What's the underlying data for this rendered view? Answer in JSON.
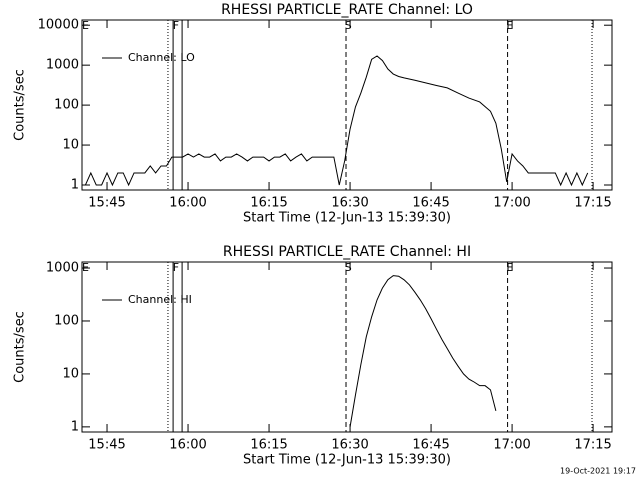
{
  "chart_data": [
    {
      "type": "line",
      "title": "RHESSI PARTICLE_RATE Channel: LO",
      "x_label": "Start Time (12-Jun-13 15:39:30)",
      "y_label": "Counts/sec",
      "log_y": true,
      "legend": "upper left",
      "xlim": [
        "15:40:22",
        "17:18:30"
      ],
      "xticks": [
        "15:45",
        "16:00",
        "16:15",
        "16:30",
        "16:45",
        "17:00",
        "17:15"
      ],
      "ylim": [
        0.75,
        13500
      ],
      "yticks": [
        1,
        10,
        100,
        1000,
        10000
      ],
      "x": [
        "15:41",
        "15:42",
        "15:43",
        "15:44",
        "15:45",
        "15:46",
        "15:47",
        "15:48",
        "15:49",
        "15:50",
        "15:51",
        "15:52",
        "15:53",
        "15:54",
        "15:55",
        "15:56",
        "15:57",
        "15:58",
        "15:59",
        "16:00",
        "16:01",
        "16:02",
        "16:03",
        "16:04",
        "16:05",
        "16:06",
        "16:07",
        "16:08",
        "16:09",
        "16:10",
        "16:11",
        "16:12",
        "16:13",
        "16:14",
        "16:15",
        "16:16",
        "16:17",
        "16:18",
        "16:19",
        "16:20",
        "16:21",
        "16:22",
        "16:23",
        "16:24",
        "16:25",
        "16:26",
        "16:27",
        "16:28",
        "16:29",
        "16:30",
        "16:31",
        "16:32",
        "16:33",
        "16:34",
        "16:35",
        "16:36",
        "16:37",
        "16:38",
        "16:39",
        "16:40",
        "16:42",
        "16:44",
        "16:46",
        "16:48",
        "16:50",
        "16:52",
        "16:54",
        "16:56",
        "16:57",
        "16:58",
        "16:59",
        "17:00",
        "17:01",
        "17:02",
        "17:03",
        "17:04",
        "17:05",
        "17:06",
        "17:07",
        "17:08",
        "17:09",
        "17:10",
        "17:11",
        "17:12",
        "17:13",
        "17:14"
      ],
      "series": [
        {
          "name": "Channel: LO",
          "color": "#000000",
          "values": [
            1,
            2,
            1,
            1,
            2,
            1,
            2,
            2,
            1,
            2,
            2,
            2,
            3,
            2,
            3,
            3,
            5,
            5,
            5,
            6,
            5,
            6,
            5,
            5,
            6,
            4,
            5,
            5,
            6,
            5,
            4,
            5,
            5,
            5,
            4,
            5,
            5,
            6,
            4,
            5,
            6,
            4,
            5,
            5,
            5,
            5,
            5,
            1,
            4,
            25,
            90,
            200,
            500,
            1400,
            1700,
            1300,
            800,
            600,
            520,
            480,
            420,
            360,
            310,
            270,
            200,
            150,
            120,
            70,
            35,
            8,
            1.2,
            6,
            4,
            3,
            2,
            2,
            2,
            2,
            2,
            2,
            1,
            2,
            1,
            2,
            1,
            2
          ]
        }
      ],
      "vlines": [
        {
          "x": "15:56:17",
          "style": "dotted"
        },
        {
          "x": "15:57:14",
          "style": "solid"
        },
        {
          "x": "15:58:54",
          "style": "solid"
        },
        {
          "x": "16:29:15",
          "style": "dashed"
        },
        {
          "x": "16:59:10",
          "style": "dashed"
        },
        {
          "x": "17:14:48",
          "style": "dotted"
        }
      ],
      "flags": [
        {
          "label": "E",
          "x": "15:41:00"
        },
        {
          "label": "F",
          "x": "15:57:45"
        },
        {
          "label": "S",
          "x": "16:29:40"
        },
        {
          "label": "E",
          "x": "16:59:35"
        }
      ]
    },
    {
      "type": "line",
      "title": "RHESSI PARTICLE_RATE Channel: HI",
      "x_label": "Start Time (12-Jun-13 15:39:30)",
      "y_label": "Counts/sec",
      "log_y": true,
      "legend": "upper left",
      "xlim": [
        "15:40:22",
        "17:18:30"
      ],
      "xticks": [
        "15:45",
        "16:00",
        "16:15",
        "16:30",
        "16:45",
        "17:00",
        "17:15"
      ],
      "ylim": [
        0.8,
        1300
      ],
      "yticks": [
        1,
        10,
        100,
        1000
      ],
      "x": [
        "16:30",
        "16:31",
        "16:32",
        "16:33",
        "16:34",
        "16:35",
        "16:36",
        "16:37",
        "16:38",
        "16:39",
        "16:40",
        "16:41",
        "16:42",
        "16:43",
        "16:44",
        "16:45",
        "16:46",
        "16:47",
        "16:48",
        "16:49",
        "16:50",
        "16:51",
        "16:52",
        "16:53",
        "16:54",
        "16:55",
        "16:56",
        "16:57"
      ],
      "series": [
        {
          "name": "Channel: HI",
          "color": "#000000",
          "values": [
            1,
            4,
            15,
            50,
            120,
            250,
            420,
            600,
            720,
            700,
            600,
            480,
            350,
            250,
            170,
            110,
            70,
            45,
            30,
            20,
            14,
            10,
            8,
            7,
            6,
            6,
            5,
            2
          ]
        }
      ],
      "vlines": [
        {
          "x": "15:56:17",
          "style": "dotted"
        },
        {
          "x": "15:57:14",
          "style": "solid"
        },
        {
          "x": "15:58:54",
          "style": "solid"
        },
        {
          "x": "16:29:15",
          "style": "dashed"
        },
        {
          "x": "16:59:10",
          "style": "dashed"
        },
        {
          "x": "17:14:48",
          "style": "dotted"
        }
      ],
      "flags": [
        {
          "label": "E",
          "x": "15:41:00"
        },
        {
          "label": "F",
          "x": "15:57:45"
        },
        {
          "label": "S",
          "x": "16:29:40"
        },
        {
          "label": "E",
          "x": "16:59:35"
        }
      ]
    }
  ],
  "footer": "19-Oct-2021 19:17"
}
